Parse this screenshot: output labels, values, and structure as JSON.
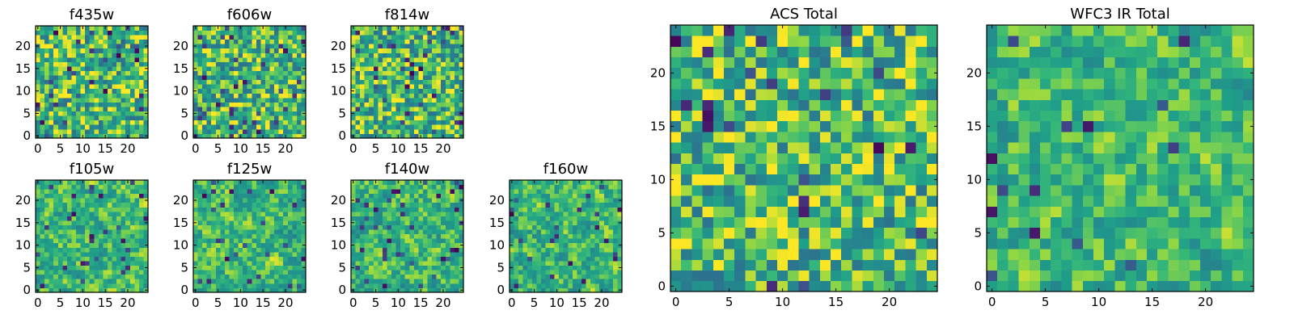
{
  "figure": {
    "colormap": "viridis",
    "colors": [
      "#440154",
      "#31688e",
      "#35b779",
      "#8fd744",
      "#fde725"
    ]
  },
  "chart_data": [
    {
      "id": "f435w",
      "type": "heatmap",
      "title": "f435w",
      "grid_size": 25,
      "xticks": [
        0,
        5,
        10,
        15,
        20
      ],
      "yticks": [
        0,
        5,
        10,
        15,
        20
      ],
      "seed": 11,
      "smooth": 0,
      "dark_fraction": 0.05
    },
    {
      "id": "f606w",
      "type": "heatmap",
      "title": "f606w",
      "grid_size": 25,
      "xticks": [
        0,
        5,
        10,
        15,
        20
      ],
      "yticks": [
        0,
        5,
        10,
        15,
        20
      ],
      "seed": 23,
      "smooth": 0,
      "dark_fraction": 0.05
    },
    {
      "id": "f814w",
      "type": "heatmap",
      "title": "f814w",
      "grid_size": 25,
      "xticks": [
        0,
        5,
        10,
        15,
        20
      ],
      "yticks": [
        0,
        5,
        10,
        15,
        20
      ],
      "seed": 37,
      "smooth": 0,
      "dark_fraction": 0.06
    },
    {
      "id": "f105w",
      "type": "heatmap",
      "title": "f105w",
      "grid_size": 25,
      "xticks": [
        0,
        5,
        10,
        15,
        20
      ],
      "yticks": [
        0,
        5,
        10,
        15,
        20
      ],
      "seed": 41,
      "smooth": 1,
      "dark_fraction": 0.05
    },
    {
      "id": "f125w",
      "type": "heatmap",
      "title": "f125w",
      "grid_size": 25,
      "xticks": [
        0,
        5,
        10,
        15,
        20
      ],
      "yticks": [
        0,
        5,
        10,
        15,
        20
      ],
      "seed": 53,
      "smooth": 1,
      "dark_fraction": 0.05
    },
    {
      "id": "f140w",
      "type": "heatmap",
      "title": "f140w",
      "grid_size": 25,
      "xticks": [
        0,
        5,
        10,
        15,
        20
      ],
      "yticks": [
        0,
        5,
        10,
        15,
        20
      ],
      "seed": 67,
      "smooth": 1,
      "dark_fraction": 0.04
    },
    {
      "id": "f160w",
      "type": "heatmap",
      "title": "f160w",
      "grid_size": 25,
      "xticks": [
        0,
        5,
        10,
        15,
        20
      ],
      "yticks": [
        0,
        5,
        10,
        15,
        20
      ],
      "seed": 79,
      "smooth": 1,
      "dark_fraction": 0.05
    },
    {
      "id": "acs_total",
      "type": "heatmap",
      "title": "ACS Total",
      "grid_size": 25,
      "xticks": [
        0,
        5,
        10,
        15,
        20
      ],
      "yticks": [
        0,
        5,
        10,
        15,
        20
      ],
      "seed": 97,
      "smooth": 0,
      "dark_fraction": 0.04
    },
    {
      "id": "wfc3_ir_total",
      "type": "heatmap",
      "title": "WFC3 IR Total",
      "grid_size": 25,
      "xticks": [
        0,
        5,
        10,
        15,
        20
      ],
      "yticks": [
        0,
        5,
        10,
        15,
        20
      ],
      "seed": 113,
      "smooth": 1,
      "dark_fraction": 0.03
    }
  ]
}
